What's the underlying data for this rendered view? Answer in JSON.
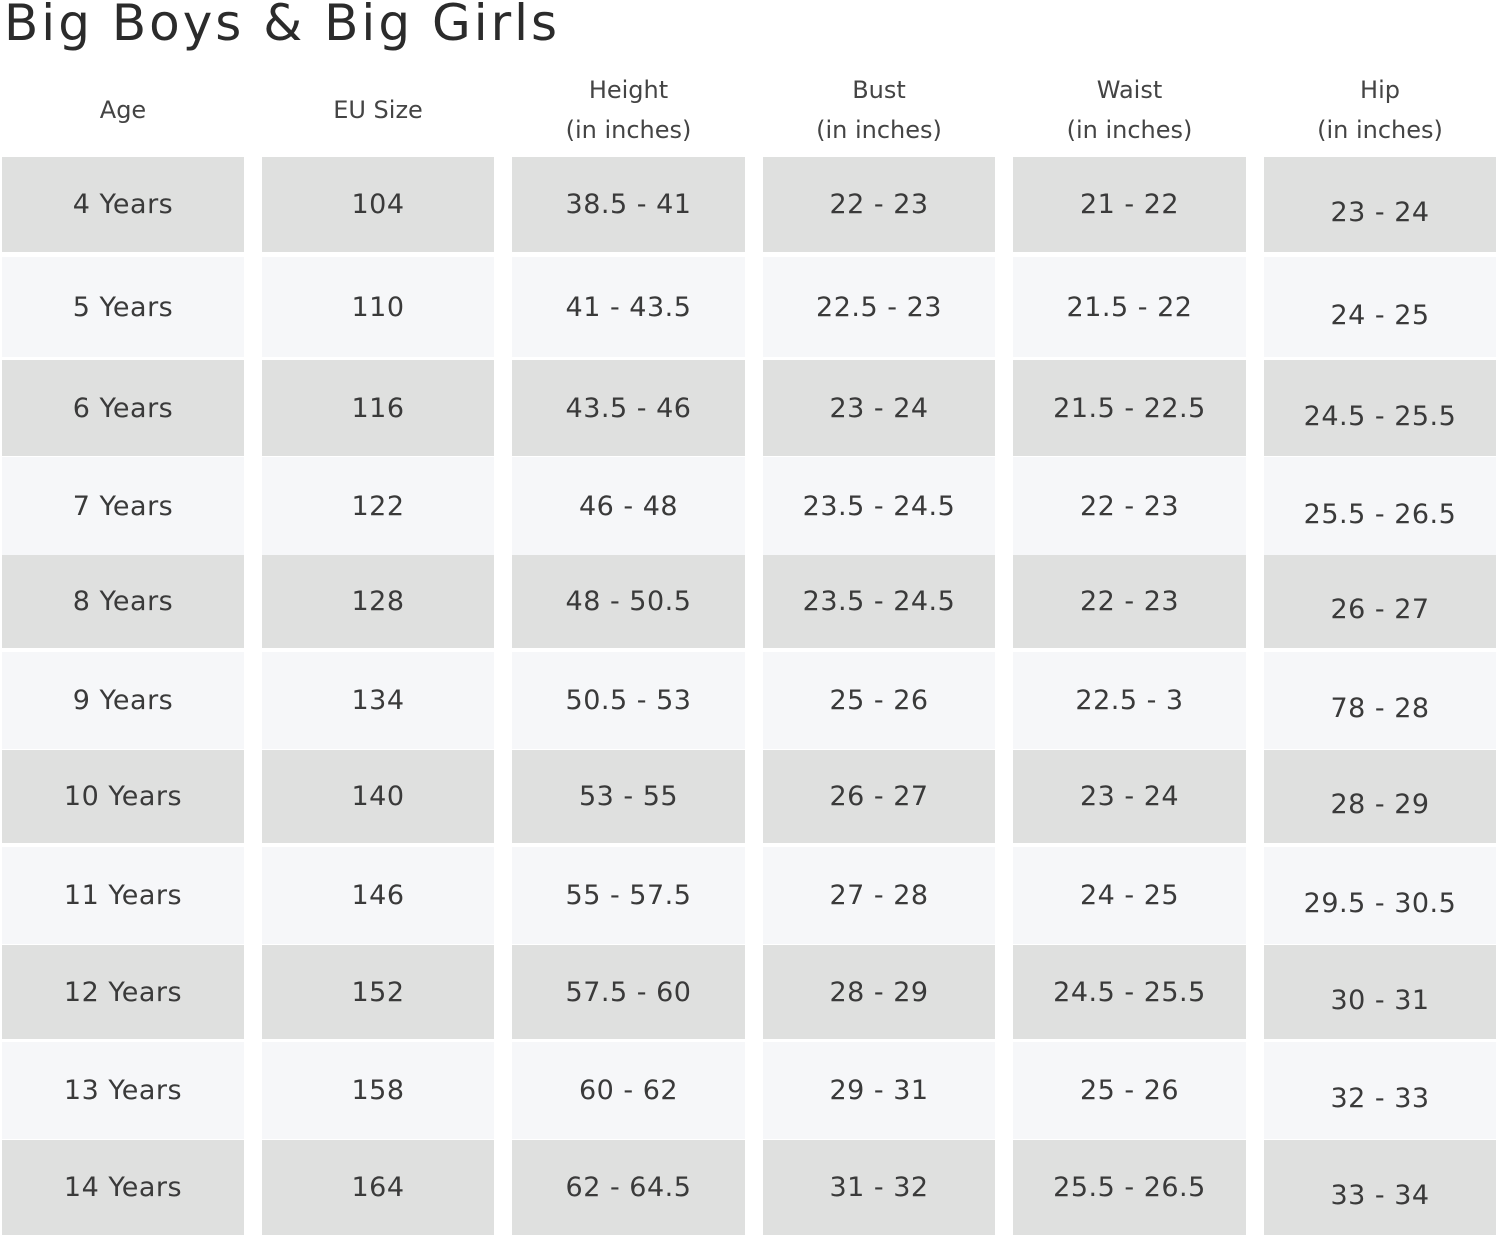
{
  "title": "Big Boys & Big Girls",
  "headers": {
    "age": "Age",
    "eu_size": "EU Size",
    "height": {
      "line1": "Height",
      "line2": "(in inches)"
    },
    "bust": {
      "line1": "Bust",
      "line2": "(in inches)"
    },
    "waist": {
      "line1": "Waist",
      "line2": "(in inches)"
    },
    "hip": {
      "line1": "Hip",
      "line2": "(in inches)"
    }
  },
  "rows": [
    {
      "age": "4 Years",
      "eu_size": "104",
      "height": "38.5 - 41",
      "bust": "22 - 23",
      "waist": "21 - 22",
      "hip": "23 - 24"
    },
    {
      "age": "5 Years",
      "eu_size": "110",
      "height": "41 - 43.5",
      "bust": "22.5 - 23",
      "waist": "21.5 - 22",
      "hip": "24 - 25"
    },
    {
      "age": "6 Years",
      "eu_size": "116",
      "height": "43.5 - 46",
      "bust": "23 - 24",
      "waist": "21.5 - 22.5",
      "hip": "24.5 - 25.5"
    },
    {
      "age": "7 Years",
      "eu_size": "122",
      "height": "46 - 48",
      "bust": "23.5 - 24.5",
      "waist": "22 - 23",
      "hip": "25.5 - 26.5"
    },
    {
      "age": "8 Years",
      "eu_size": "128",
      "height": "48 - 50.5",
      "bust": "23.5 - 24.5",
      "waist": "22 - 23",
      "hip": "26 - 27"
    },
    {
      "age": "9 Years",
      "eu_size": "134",
      "height": "50.5 - 53",
      "bust": "25 - 26",
      "waist": "22.5 - 3",
      "hip": "78 - 28"
    },
    {
      "age": "10 Years",
      "eu_size": "140",
      "height": "53 - 55",
      "bust": "26 - 27",
      "waist": "23 - 24",
      "hip": "28 - 29"
    },
    {
      "age": "11 Years",
      "eu_size": "146",
      "height": "55 - 57.5",
      "bust": "27 - 28",
      "waist": "24 - 25",
      "hip": "29.5 - 30.5"
    },
    {
      "age": "12 Years",
      "eu_size": "152",
      "height": "57.5 - 60",
      "bust": "28 - 29",
      "waist": "24.5 - 25.5",
      "hip": "30 - 31"
    },
    {
      "age": "13 Years",
      "eu_size": "158",
      "height": "60 - 62",
      "bust": "29 - 31",
      "waist": "25 - 26",
      "hip": "32 - 33"
    },
    {
      "age": "14 Years",
      "eu_size": "164",
      "height": "62 - 64.5",
      "bust": "31 - 32",
      "waist": "25.5 - 26.5",
      "hip": "33 - 34"
    }
  ]
}
